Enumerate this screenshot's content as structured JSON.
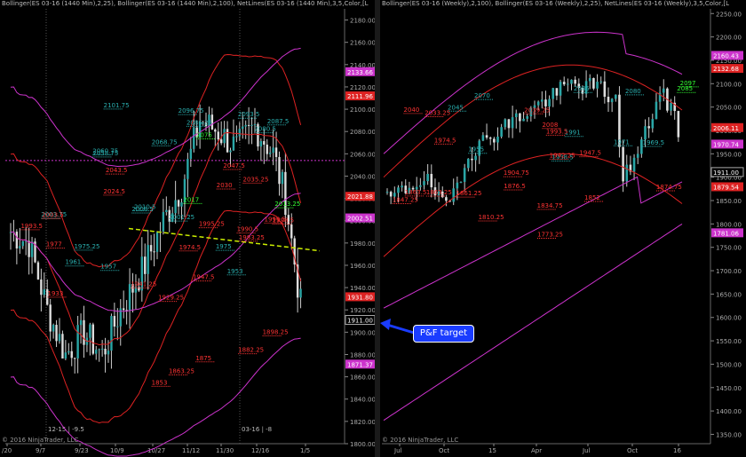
{
  "left_panel": {
    "header": "Bollinger(ES 03-16 (1440 Min),2,25), Bollinger(ES 03-16 (1440 Min),2,100), NetLines(ES 03-16 (1440 Min),3,5,Color,[L",
    "copyright": "© 2016 NinjaTrader, LLC",
    "x_ticks": [
      "/20",
      "9/7",
      "9/23",
      "10/9",
      "10/27",
      "11/12",
      "11/30",
      "12/16",
      "1/5"
    ],
    "y_ticks": [
      "2180.00",
      "2160.00",
      "2140.00",
      "2120.00",
      "2100.00",
      "2080.00",
      "2060.00",
      "2040.00",
      "2020.00",
      "2000.00",
      "1980.00",
      "1960.00",
      "1940.00",
      "1920.00",
      "1900.00",
      "1880.00",
      "1860.00",
      "1840.00",
      "1820.00",
      "1800.00"
    ],
    "price_tags": [
      {
        "label": "2133.66",
        "color": "#cc33cc"
      },
      {
        "label": "2111.96",
        "color": "#dd2222"
      },
      {
        "label": "2021.88",
        "color": "#dd2222"
      },
      {
        "label": "2002.51",
        "color": "#cc33cc"
      },
      {
        "label": "1931.80",
        "color": "#dd2222"
      },
      {
        "label": "1911.00",
        "color": "#000000"
      },
      {
        "label": "1871.37",
        "color": "#cc33cc"
      }
    ],
    "annotations_cyan": [
      "2086.25",
      "2080.5",
      "2060.75",
      "2003.75",
      "1975.25",
      "1975",
      "1961",
      "1957",
      "1953",
      "2101.75",
      "2096.75",
      "2093.5",
      "2087.5",
      "2068.75",
      "2058.75",
      "2010.5",
      "2008.5",
      "2001.25"
    ],
    "annotations_red": [
      "1933",
      "1898.25",
      "1882.25",
      "1875",
      "1863.25",
      "1853",
      "1929.25",
      "1947.5",
      "1941.25",
      "1977",
      "1974.5",
      "1993.5",
      "1990.5",
      "1983.25",
      "1995.25",
      "2003.5",
      "2030",
      "2035.25",
      "2043.5",
      "2047.5",
      "1999.5",
      "1998.5",
      "2024.5"
    ],
    "annotations_green": [
      "2075",
      "2017",
      "2013.25"
    ],
    "session_labels": [
      "12-15 | -9.5",
      "03-16 | -8"
    ]
  },
  "right_panel": {
    "header": "Bollinger(ES 03-16 (Weekly),2,100), Bollinger(ES 03-16 (Weekly),2,25), NetLines(ES 03-16 (Weekly),3,5,Color,[L",
    "copyright": "© 2016 NinjaTrader, LLC",
    "x_ticks": [
      "Jul",
      "Oct",
      "15",
      "Apr",
      "Jul",
      "Oct",
      "16"
    ],
    "y_ticks": [
      "2250.00",
      "2200.00",
      "2150.00",
      "2100.00",
      "2050.00",
      "2000.00",
      "1950.00",
      "1900.00",
      "1850.00",
      "1800.00",
      "1750.00",
      "1700.00",
      "1650.00",
      "1600.00",
      "1550.00",
      "1500.00",
      "1450.00",
      "1400.00",
      "1350.00"
    ],
    "price_tags": [
      {
        "label": "2160.43",
        "color": "#cc33cc"
      },
      {
        "label": "2132.68",
        "color": "#dd2222"
      },
      {
        "label": "2006.11",
        "color": "#dd2222"
      },
      {
        "label": "1970.74",
        "color": "#cc33cc"
      },
      {
        "label": "1911.00",
        "color": "#000000"
      },
      {
        "label": "1879.54",
        "color": "#dd2222"
      },
      {
        "label": "1781.06",
        "color": "#cc33cc"
      }
    ],
    "annotations_cyan": [
      "1971",
      "1969.5",
      "1955",
      "1938.5",
      "1991",
      "2085",
      "2045",
      "2070",
      "2080"
    ],
    "annotations_red": [
      "1810.25",
      "1847.25",
      "1852",
      "1863.25",
      "1874.75",
      "1876.5",
      "1904.75",
      "1834.75",
      "1773.25",
      "1942.25",
      "2033.25",
      "2039.25",
      "2040",
      "1974.5",
      "1947.5",
      "1861.25",
      "1863.5",
      "2008",
      "1993.5"
    ],
    "annotations_green": [
      "2097",
      "2085"
    ]
  },
  "callout": {
    "label": "P&F target",
    "color": "#1a3cff"
  },
  "chart_data": [
    {
      "type": "candlestick",
      "title": "",
      "instrument": "ES 03-16 (1440 Min)",
      "ylim": [
        1800,
        2190
      ],
      "trendline": {
        "from": 1993,
        "to": 1973,
        "color": "#ccee00",
        "style": "dashed"
      },
      "series": [
        {
          "name": "Bollinger(2,25)",
          "color": "#dd2222"
        },
        {
          "name": "Bollinger(2,100)",
          "color": "#cc33cc"
        }
      ]
    },
    {
      "type": "candlestick",
      "title": "",
      "instrument": "ES 03-16 (Weekly)",
      "ylim": [
        1330,
        2260
      ],
      "series": [
        {
          "name": "Bollinger(2,100)",
          "color": "#cc33cc"
        },
        {
          "name": "Bollinger(2,25)",
          "color": "#dd2222"
        }
      ]
    }
  ]
}
